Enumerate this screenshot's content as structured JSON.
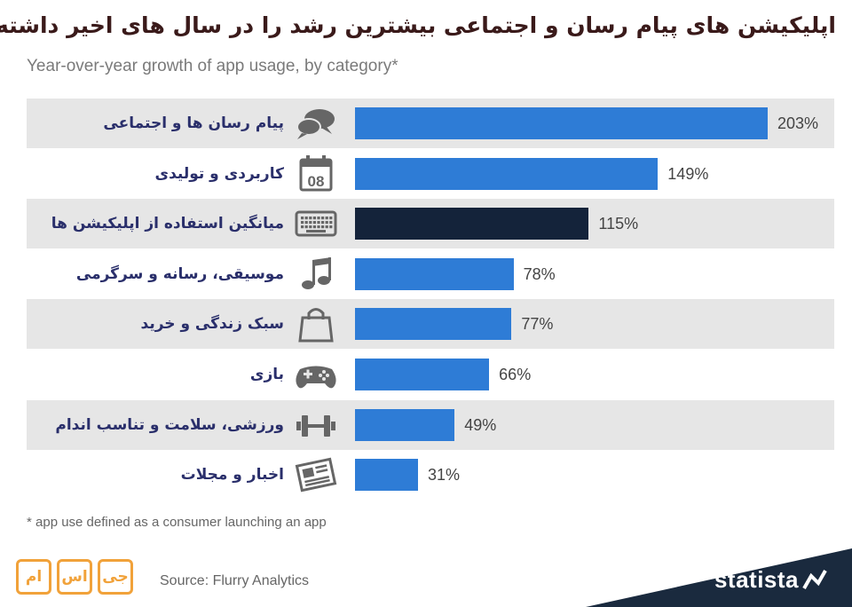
{
  "title": "اپلیکیشن های پیام رسان و اجتماعی بیشترین رشد را در سال های اخیر داشته اند",
  "subtitle": "Year-over-year growth of app usage, by category*",
  "footnote": "* app use defined as a consumer launching an app",
  "source": "Source: Flurry Analytics",
  "brand": "statista",
  "logo": {
    "parts": [
      "ام",
      "اس",
      "جی"
    ]
  },
  "colors": {
    "bar": "#2e7cd6",
    "highlight": "#14233a",
    "band": "#e6e6e6",
    "title": "#3a1a1a",
    "label": "#2a2f6b",
    "logo": "#f1a23a",
    "footer": "#1a2a3e"
  },
  "chart_data": {
    "type": "bar",
    "orientation": "horizontal",
    "categories": [
      "پیام رسان ها و اجتماعی",
      "کاربردی و تولیدی",
      "میانگین استفاده از اپلیکیشن ها",
      "موسیقی، رسانه و سرگرمی",
      "سبک زندگی و خرید",
      "بازی",
      "ورزشی، سلامت و تناسب اندام",
      "اخبار و مجلات"
    ],
    "values": [
      203,
      149,
      115,
      78,
      77,
      66,
      49,
      31
    ],
    "value_labels": [
      "203%",
      "149%",
      "115%",
      "78%",
      "77%",
      "66%",
      "49%",
      "31%"
    ],
    "icons": [
      "chat-bubbles-icon",
      "calendar-icon",
      "keyboard-icon",
      "music-note-icon",
      "shopping-bag-icon",
      "gamepad-icon",
      "dumbbell-icon",
      "newspaper-icon"
    ],
    "calendar_day": "08",
    "highlight_index": 2,
    "xlim": [
      0,
      210
    ],
    "unit": "%",
    "grid": false,
    "legend": "none"
  }
}
